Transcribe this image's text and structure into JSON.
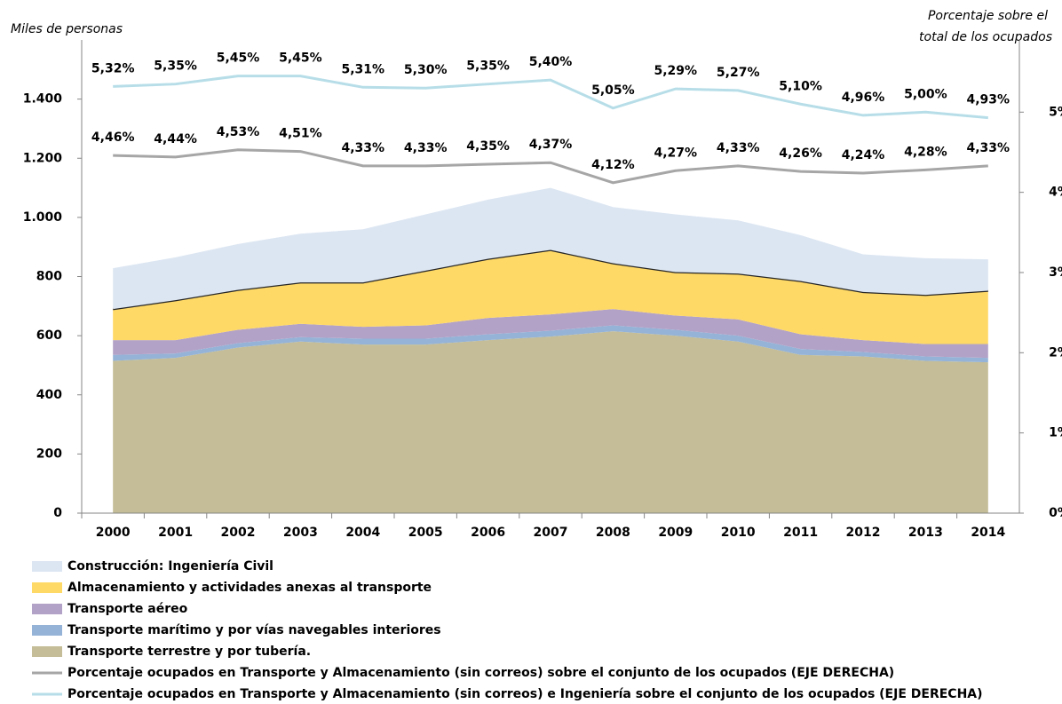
{
  "chart_data": {
    "type": "stacked_area_line",
    "y_label": "Miles de personas",
    "y2_label": [
      "Porcentaje sobre el",
      "total de los ocupados"
    ],
    "categories": [
      "2000",
      "2001",
      "2002",
      "2003",
      "2004",
      "2005",
      "2006",
      "2007",
      "2008",
      "2009",
      "2010",
      "2011",
      "2012",
      "2013",
      "2014"
    ],
    "ylim": [
      0,
      1600
    ],
    "yticks": [
      0,
      200,
      400,
      600,
      800,
      {
        "value": 1000,
        "label": "1.000"
      },
      {
        "value": 1200,
        "label": "1.200"
      },
      {
        "value": 1400,
        "label": "1.400"
      }
    ],
    "y2lim": [
      0,
      5.9
    ],
    "y2ticks": [
      {
        "value": 0,
        "label": "0%"
      },
      {
        "value": 1,
        "label": "1%"
      },
      {
        "value": 2,
        "label": "2%"
      },
      {
        "value": 3,
        "label": "3%"
      },
      {
        "value": 4,
        "label": "4%"
      },
      {
        "value": 5,
        "label": "5%"
      }
    ],
    "series": [
      {
        "name": "Transporte terrestre y por tubería.",
        "kind": "area",
        "color": "#c4bd97",
        "values": [
          515,
          525,
          560,
          580,
          570,
          570,
          585,
          597,
          615,
          600,
          580,
          535,
          530,
          515,
          510
        ]
      },
      {
        "name": "Transporte marítimo y por vías navegables interiores",
        "kind": "area",
        "color": "#95b3d7",
        "values": [
          20,
          15,
          15,
          15,
          20,
          20,
          20,
          20,
          20,
          20,
          20,
          20,
          15,
          15,
          15
        ]
      },
      {
        "name": "Transporte aéreo",
        "kind": "area",
        "color": "#b3a2c7",
        "values": [
          50,
          45,
          45,
          45,
          40,
          45,
          55,
          55,
          55,
          48,
          55,
          50,
          40,
          42,
          47
        ]
      },
      {
        "name": "Almacenamiento y actividades anexas al transporte",
        "kind": "area",
        "color": "#ffd966",
        "edge": "#262626",
        "values": [
          105,
          135,
          135,
          140,
          150,
          185,
          200,
          218,
          155,
          147,
          155,
          180,
          163,
          166,
          180
        ]
      },
      {
        "name": "Construcción: Ingeniería Civil",
        "kind": "area",
        "color": "#dce6f2",
        "values": [
          138,
          145,
          155,
          165,
          180,
          190,
          200,
          210,
          190,
          195,
          180,
          155,
          127,
          124,
          106
        ]
      },
      {
        "name": "Porcentaje ocupados en Transporte y Almacenamiento (sin correos) sobre el conjunto de los ocupados (EJE DERECHA)",
        "kind": "line",
        "axis": "y2",
        "color": "#a6a6a6",
        "label_color": "#7f7f7f",
        "values": [
          4.46,
          4.44,
          4.53,
          4.51,
          4.33,
          4.33,
          4.35,
          4.37,
          4.12,
          4.27,
          4.33,
          4.26,
          4.24,
          4.28,
          4.33
        ],
        "value_labels": [
          "4,46%",
          "4,44%",
          "4,53%",
          "4,51%",
          "4,33%",
          "4,33%",
          "4,35%",
          "4,37%",
          "4,12%",
          "4,27%",
          "4,33%",
          "4,26%",
          "4,24%",
          "4,28%",
          "4,33%"
        ]
      },
      {
        "name": "Porcentaje ocupados en Transporte y Almacenamiento (sin correos) e Ingeniería sobre el conjunto de los ocupados (EJE DERECHA)",
        "kind": "line",
        "axis": "y2",
        "color": "#b7dee8",
        "label_color": "#376092",
        "values": [
          5.32,
          5.35,
          5.45,
          5.45,
          5.31,
          5.3,
          5.35,
          5.4,
          5.05,
          5.29,
          5.27,
          5.1,
          4.96,
          5.0,
          4.93
        ],
        "value_labels": [
          "5,32%",
          "5,35%",
          "5,45%",
          "5,45%",
          "5,31%",
          "5,30%",
          "5,35%",
          "5,40%",
          "5,05%",
          "5,29%",
          "5,27%",
          "5,10%",
          "4,96%",
          "5,00%",
          "4,93%"
        ]
      }
    ],
    "legend_order": [
      4,
      3,
      2,
      1,
      0,
      5,
      6
    ]
  }
}
